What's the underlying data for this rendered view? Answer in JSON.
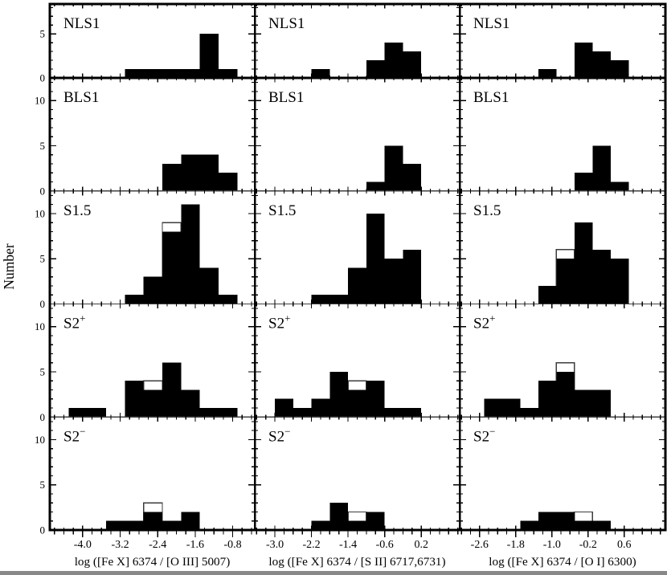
{
  "figure": {
    "ylabel": "Number",
    "style": {
      "background": "#ffffff",
      "bar_fill": "#000000",
      "open_bar_stroke": "#3c3c3c",
      "frame": "#000000",
      "thin_separator": "#404040"
    }
  },
  "chart_data": {
    "type": "bar",
    "title": "",
    "ylabel": "Number",
    "legend": "none",
    "grid": false,
    "rows": [
      {
        "label": "NLS1",
        "sup": "",
        "ymax": 8.4,
        "major_yticks": [
          0,
          5
        ]
      },
      {
        "label": "BLS1",
        "sup": "",
        "ymax": 12.5,
        "major_yticks": [
          0,
          5,
          10
        ]
      },
      {
        "label": "S1.5",
        "sup": "",
        "ymax": 12.5,
        "major_yticks": [
          0,
          5,
          10
        ]
      },
      {
        "label": "S2",
        "sup": "+",
        "ymax": 12.5,
        "major_yticks": [
          0,
          5,
          10
        ]
      },
      {
        "label": "S2",
        "sup": "−",
        "ymax": 12.5,
        "major_yticks": [
          0,
          5,
          10
        ]
      }
    ],
    "cols": [
      {
        "xlabel": "log ([Fe X] 6374 / [O III] 5007)",
        "xlim": [
          -4.7,
          -0.33
        ],
        "major_xticks": [
          -4.0,
          -3.2,
          -2.4,
          -1.6,
          -0.8
        ],
        "minor_step": 0.2
      },
      {
        "xlabel": "log ([Fe X] 6374 / [S II] 6717,6731)",
        "xlim": [
          -3.44,
          1.04
        ],
        "major_xticks": [
          -3.0,
          -2.2,
          -1.4,
          -0.6,
          0.2
        ],
        "minor_step": 0.2
      },
      {
        "xlabel": "log ([Fe X] 6374 / [O I] 6300)",
        "xlim": [
          -3.04,
          1.51
        ],
        "major_xticks": [
          -2.6,
          -1.8,
          -1.0,
          -0.2,
          0.6
        ],
        "minor_step": 0.2
      }
    ],
    "panels": [
      [
        [
          {
            "x0": -3.1,
            "x1": -2.7,
            "n": 1
          },
          {
            "x0": -2.7,
            "x1": -2.3,
            "n": 1
          },
          {
            "x0": -2.3,
            "x1": -1.9,
            "n": 1
          },
          {
            "x0": -1.9,
            "x1": -1.5,
            "n": 1
          },
          {
            "x0": -1.5,
            "x1": -1.1,
            "n": 5
          },
          {
            "x0": -1.1,
            "x1": -0.7,
            "n": 1
          }
        ],
        [
          {
            "x0": -2.2,
            "x1": -1.8,
            "n": 1
          },
          {
            "x0": -1.0,
            "x1": -0.6,
            "n": 2
          },
          {
            "x0": -0.6,
            "x1": -0.2,
            "n": 4
          },
          {
            "x0": -0.2,
            "x1": 0.2,
            "n": 3
          }
        ],
        [
          {
            "x0": -1.3,
            "x1": -0.9,
            "n": 1
          },
          {
            "x0": -0.5,
            "x1": -0.1,
            "n": 4
          },
          {
            "x0": -0.1,
            "x1": 0.3,
            "n": 3
          },
          {
            "x0": 0.3,
            "x1": 0.7,
            "n": 2
          }
        ]
      ],
      [
        [
          {
            "x0": -2.3,
            "x1": -1.9,
            "n": 3
          },
          {
            "x0": -1.9,
            "x1": -1.5,
            "n": 4
          },
          {
            "x0": -1.5,
            "x1": -1.1,
            "n": 4
          },
          {
            "x0": -1.1,
            "x1": -0.7,
            "n": 2
          }
        ],
        [
          {
            "x0": -1.0,
            "x1": -0.6,
            "n": 1
          },
          {
            "x0": -0.6,
            "x1": -0.2,
            "n": 5
          },
          {
            "x0": -0.2,
            "x1": 0.2,
            "n": 3
          }
        ],
        [
          {
            "x0": -0.5,
            "x1": -0.1,
            "n": 2
          },
          {
            "x0": -0.1,
            "x1": 0.3,
            "n": 5
          },
          {
            "x0": 0.3,
            "x1": 0.7,
            "n": 1
          }
        ]
      ],
      [
        [
          {
            "x0": -3.1,
            "x1": -2.7,
            "n": 1
          },
          {
            "x0": -2.7,
            "x1": -2.3,
            "n": 3
          },
          {
            "x0": -2.3,
            "x1": -1.9,
            "n": 8,
            "open": 9
          },
          {
            "x0": -1.9,
            "x1": -1.5,
            "n": 11
          },
          {
            "x0": -1.5,
            "x1": -1.1,
            "n": 4
          },
          {
            "x0": -1.1,
            "x1": -0.7,
            "n": 1
          }
        ],
        [
          {
            "x0": -2.2,
            "x1": -1.8,
            "n": 1
          },
          {
            "x0": -1.8,
            "x1": -1.4,
            "n": 1
          },
          {
            "x0": -1.4,
            "x1": -1.0,
            "n": 4
          },
          {
            "x0": -1.0,
            "x1": -0.6,
            "n": 10
          },
          {
            "x0": -0.6,
            "x1": -0.2,
            "n": 5
          },
          {
            "x0": -0.2,
            "x1": 0.2,
            "n": 6
          }
        ],
        [
          {
            "x0": -1.3,
            "x1": -0.9,
            "n": 2
          },
          {
            "x0": -0.9,
            "x1": -0.5,
            "n": 5,
            "open": 6
          },
          {
            "x0": -0.5,
            "x1": -0.1,
            "n": 9
          },
          {
            "x0": -0.1,
            "x1": 0.3,
            "n": 6
          },
          {
            "x0": 0.3,
            "x1": 0.7,
            "n": 5
          }
        ]
      ],
      [
        [
          {
            "x0": -4.3,
            "x1": -3.5,
            "n": 1
          },
          {
            "x0": -3.1,
            "x1": -2.7,
            "n": 4
          },
          {
            "x0": -2.7,
            "x1": -2.3,
            "n": 3,
            "open": 4
          },
          {
            "x0": -2.3,
            "x1": -1.9,
            "n": 6
          },
          {
            "x0": -1.9,
            "x1": -1.5,
            "n": 3
          },
          {
            "x0": -1.5,
            "x1": -0.7,
            "n": 1
          }
        ],
        [
          {
            "x0": -3.0,
            "x1": -2.6,
            "n": 2
          },
          {
            "x0": -2.6,
            "x1": -2.2,
            "n": 1
          },
          {
            "x0": -2.2,
            "x1": -1.8,
            "n": 2
          },
          {
            "x0": -1.8,
            "x1": -1.4,
            "n": 5
          },
          {
            "x0": -1.4,
            "x1": -1.0,
            "n": 3,
            "open": 4
          },
          {
            "x0": -1.0,
            "x1": -0.6,
            "n": 4
          },
          {
            "x0": -0.6,
            "x1": 0.2,
            "n": 1
          }
        ],
        [
          {
            "x0": -2.5,
            "x1": -1.7,
            "n": 2
          },
          {
            "x0": -1.7,
            "x1": -1.3,
            "n": 1
          },
          {
            "x0": -1.3,
            "x1": -0.9,
            "n": 4
          },
          {
            "x0": -0.9,
            "x1": -0.5,
            "n": 5,
            "open": 6
          },
          {
            "x0": -0.5,
            "x1": 0.3,
            "n": 3
          }
        ]
      ],
      [
        [
          {
            "x0": -3.5,
            "x1": -2.7,
            "n": 1
          },
          {
            "x0": -2.7,
            "x1": -2.3,
            "n": 2,
            "open": 3
          },
          {
            "x0": -2.3,
            "x1": -1.9,
            "n": 1
          },
          {
            "x0": -1.9,
            "x1": -1.5,
            "n": 2
          }
        ],
        [
          {
            "x0": -2.2,
            "x1": -1.8,
            "n": 1
          },
          {
            "x0": -1.8,
            "x1": -1.4,
            "n": 3
          },
          {
            "x0": -1.4,
            "x1": -1.0,
            "n": 1,
            "open": 2
          },
          {
            "x0": -1.0,
            "x1": -0.6,
            "n": 2
          }
        ],
        [
          {
            "x0": -1.7,
            "x1": -1.3,
            "n": 1
          },
          {
            "x0": -1.3,
            "x1": -0.5,
            "n": 2
          },
          {
            "x0": -0.5,
            "x1": -0.1,
            "n": 1,
            "open": 2
          },
          {
            "x0": -0.1,
            "x1": 0.3,
            "n": 1
          }
        ]
      ]
    ]
  }
}
